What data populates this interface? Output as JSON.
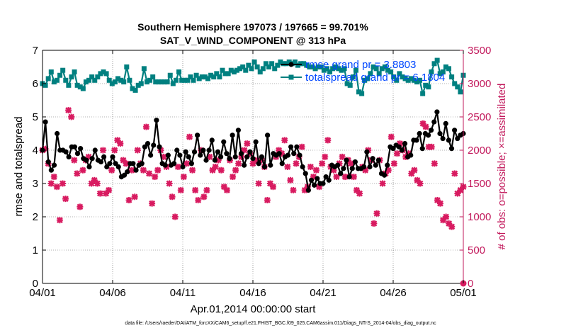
{
  "chart_data": {
    "type": "line",
    "title": "Southern Hemisphere 197073 / 197665 = 99.701%",
    "subtitle": "SAT_V_WIND_COMPONENT @ 313 hPa",
    "xlabel": "Apr.01,2014 00:00:00 start",
    "ylabel": "rmse and totalspread",
    "y2label": "# of obs: o=possible; ×=assimilated",
    "x_ticks": [
      "04/01",
      "04/06",
      "04/11",
      "04/16",
      "04/21",
      "04/26",
      "05/01"
    ],
    "xlim": [
      0,
      30
    ],
    "ylim": [
      0,
      7
    ],
    "y_ticks": [
      "0",
      "1",
      "2",
      "3",
      "4",
      "5",
      "6",
      "7"
    ],
    "y2lim": [
      0,
      3500
    ],
    "y2_ticks": [
      "0",
      "500",
      "1000",
      "1500",
      "2000",
      "2500",
      "3000",
      "3500"
    ],
    "grid": true,
    "legend_position": "top-right",
    "footer": "data file: /Users/raeder/DAI/ATM_forcXX/CAM6_setup/f.e21.FHIST_BGC.f09_025.CAM6assim.011/Diags_NTrS_2014-04/obs_diag_output.nc",
    "colors": {
      "rmse": "#000000",
      "spread": "#008080",
      "obs": "#d81b60",
      "right_axis": "#c2185b",
      "legend_text": "#0047ff"
    },
    "series": [
      {
        "name": "rmse grand pr = 3.8803",
        "role": "rmse",
        "values": [
          4.0,
          4.85,
          3.65,
          3.4,
          3.55,
          4.5,
          4.0,
          4.0,
          3.95,
          3.8,
          4.1,
          4.1,
          3.9,
          4.05,
          3.75,
          3.7,
          3.5,
          3.75,
          4.0,
          3.7,
          3.65,
          3.8,
          3.5,
          3.6,
          3.8,
          3.6,
          3.5,
          3.2,
          3.25,
          3.35,
          3.6,
          3.6,
          3.4,
          3.55,
          3.6,
          4.1,
          4.2,
          3.85,
          4.15,
          4.9,
          4.1,
          3.6,
          3.55,
          3.85,
          3.55,
          3.6,
          4.0,
          3.85,
          3.5,
          3.95,
          3.8,
          3.6,
          3.95,
          4.45,
          3.85,
          4.0,
          3.7,
          4.0,
          4.3,
          3.7,
          3.95,
          3.8,
          4.25,
          3.9,
          3.75,
          4.45,
          3.8,
          4.6,
          3.9,
          3.55,
          3.8,
          3.95,
          3.75,
          4.25,
          3.6,
          3.8,
          3.5,
          4.45,
          3.55,
          3.9,
          3.85,
          3.9,
          3.6,
          3.8,
          3.85,
          4.1,
          3.9,
          4.1,
          3.85,
          3.5,
          3.3,
          2.8,
          3.1,
          2.95,
          3.15,
          3.0,
          3.0,
          3.2,
          3.1,
          3.55,
          3.5,
          3.55,
          3.3,
          3.45,
          3.7,
          3.2,
          3.45,
          3.65,
          3.45,
          3.45,
          3.5,
          3.95,
          3.5,
          3.75,
          3.55,
          3.7,
          3.3,
          3.25,
          3.55,
          4.1,
          4.05,
          4.15,
          4.1,
          4.0,
          4.2,
          3.8,
          3.85,
          4.3,
          4.3,
          4.5,
          4.05,
          4.5,
          4.45,
          4.6,
          4.85,
          5.15,
          4.5,
          4.35,
          4.8,
          4.3,
          4.05,
          4.6,
          4.35,
          4.45,
          4.5
        ]
      },
      {
        "name": "totalspread grand pr = 6.1804",
        "role": "spread",
        "values": [
          6.0,
          5.95,
          6.15,
          6.35,
          6.05,
          6.1,
          6.25,
          6.4,
          6.1,
          5.95,
          6.2,
          6.35,
          5.95,
          5.9,
          5.85,
          6.05,
          6.1,
          6.2,
          6.1,
          6.2,
          6.3,
          6.35,
          6.3,
          6.1,
          6.0,
          6.05,
          6.15,
          6.1,
          6.05,
          6.5,
          6.1,
          5.85,
          5.8,
          5.95,
          6.0,
          6.45,
          6.05,
          6.1,
          6.2,
          6.05,
          6.05,
          6.05,
          6.05,
          6.05,
          6.25,
          6.0,
          6.1,
          6.35,
          6.1,
          6.1,
          6.1,
          6.2,
          6.1,
          6.25,
          6.15,
          6.2,
          6.2,
          6.15,
          6.25,
          6.2,
          6.3,
          6.2,
          6.4,
          6.3,
          6.3,
          6.4,
          6.35,
          6.4,
          6.45,
          6.5,
          6.4,
          6.55,
          6.45,
          6.65,
          6.5,
          6.35,
          6.45,
          6.6,
          6.5,
          6.6,
          6.45,
          6.55,
          6.65,
          6.6,
          6.6,
          6.65,
          6.6,
          6.65,
          6.55,
          6.6,
          6.6,
          6.55,
          6.5,
          6.5,
          6.45,
          6.5,
          6.5,
          6.4,
          6.45,
          6.35,
          6.45,
          6.5,
          6.45,
          6.4,
          6.45,
          6.0,
          5.95,
          6.2,
          6.4,
          5.75,
          5.7,
          6.1,
          6.15,
          6.3,
          6.5,
          6.45,
          6.3,
          6.45,
          6.5,
          6.4,
          6.35,
          6.2,
          6.1,
          6.3,
          6.2,
          6.15,
          6.1,
          6.15,
          6.1,
          6.05,
          6.1,
          5.7,
          5.95,
          5.9,
          6.35,
          6.6,
          6.7,
          6.3,
          6.35,
          6.5,
          6.45,
          6.2,
          6.0,
          5.9,
          5.75,
          6.25
        ]
      },
      {
        "name": "obs assimilated",
        "role": "obs",
        "axis": "right",
        "values": [
          2000,
          2020,
          1800,
          1500,
          1600,
          1450,
          950,
          1500,
          1270,
          2600,
          2500,
          1850,
          1650,
          1150,
          1700,
          1850,
          1900,
          1500,
          1550,
          1500,
          1350,
          2000,
          1350,
          1400,
          1700,
          2000,
          2150,
          2100,
          1850,
          1800,
          1250,
          1700,
          1300,
          2000,
          1800,
          1700,
          2350,
          1650,
          1200,
          1600,
          1700,
          2000,
          1900,
          1750,
          1500,
          1300,
          1000,
          1750,
          1400,
          1600,
          1800,
          2200,
          1700,
          1400,
          1250,
          2000,
          1300,
          1400,
          1900,
          1700,
          1750,
          1850,
          1700,
          1450,
          1400,
          1850,
          1600,
          1700,
          1800,
          1900,
          2000,
          2100,
          1950,
          1800,
          1850,
          1500,
          1850,
          1750,
          1250,
          1500,
          1450,
          1900,
          2000,
          1950,
          2150,
          1750,
          1550,
          1400,
          1800,
          1900,
          2050,
          1400,
          1450,
          1750,
          1600,
          1700,
          1450,
          1800,
          1900,
          2150,
          1750,
          1700,
          1600,
          1800,
          1900,
          1600,
          1850,
          1800,
          1600,
          1400,
          1350,
          1750,
          1700,
          2000,
          1850,
          900,
          1050,
          1850,
          1500,
          1650,
          1700,
          2200,
          1800,
          1950,
          2100,
          2000,
          1900,
          1950,
          1650,
          1700,
          1550,
          1500,
          2400,
          2350,
          2050,
          2050,
          1800,
          1250,
          1200,
          950,
          1000,
          900,
          850,
          1650,
          1350,
          1400,
          1450
        ]
      }
    ],
    "terminal_marker": {
      "x": 30,
      "y2": 0
    }
  }
}
